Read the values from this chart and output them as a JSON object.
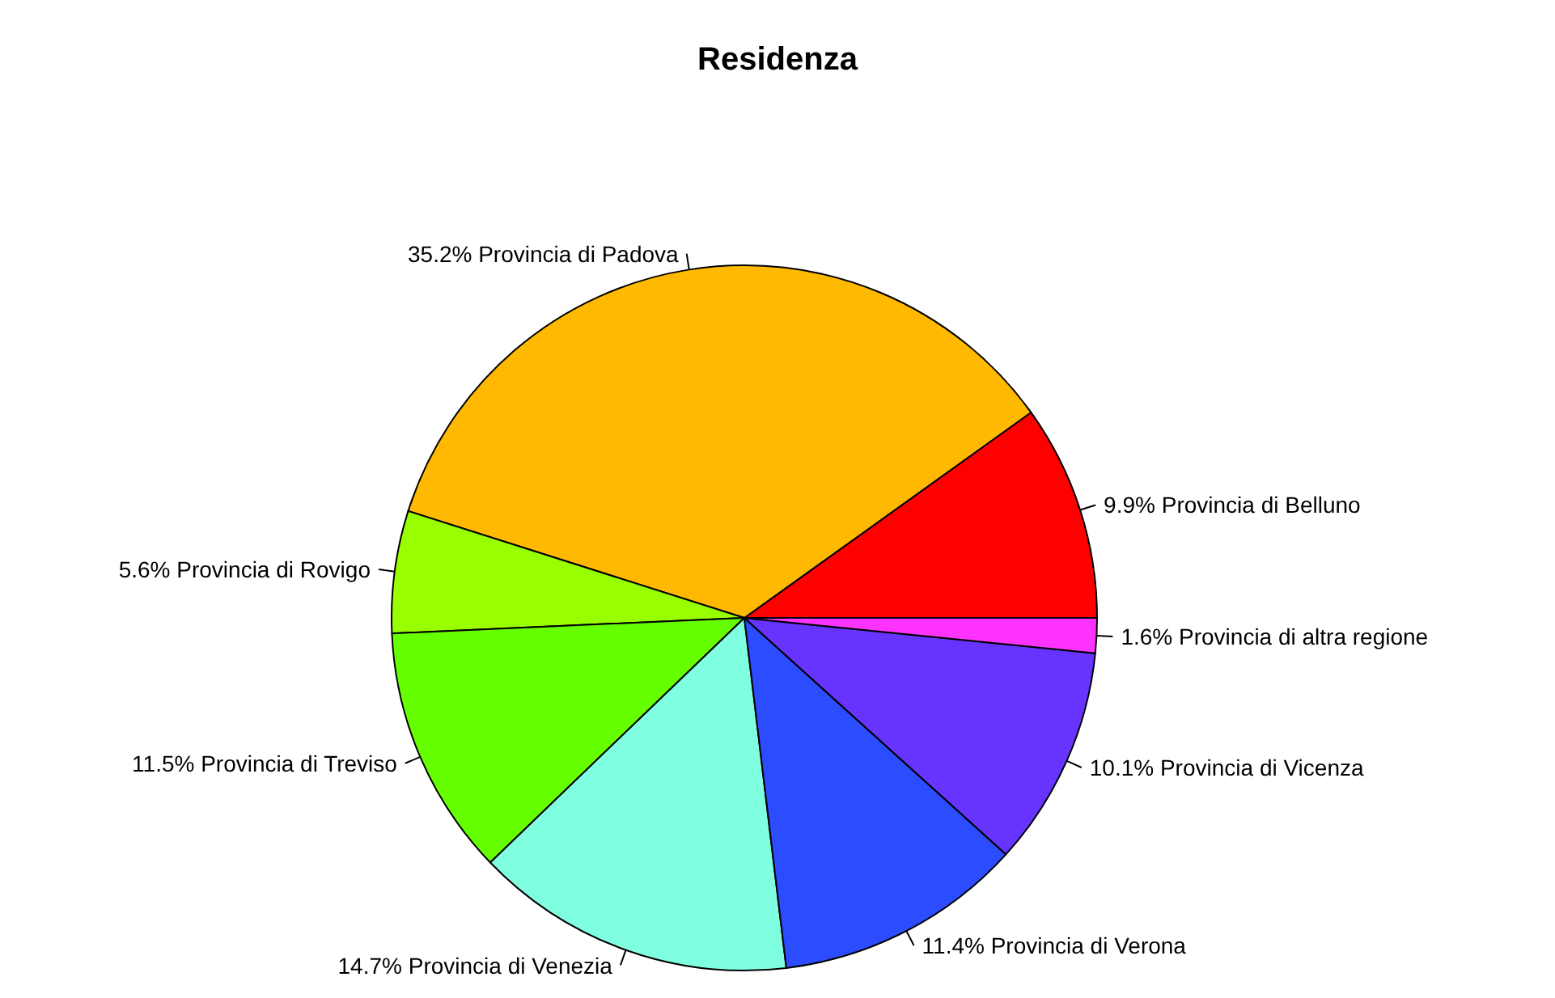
{
  "chart_data": {
    "type": "pie",
    "title": "Residenza",
    "categories": [
      "9.9% Provincia di Belluno",
      "35.2% Provincia di Padova",
      "5.6% Provincia di Rovigo",
      "11.5% Provincia di Treviso",
      "14.7% Provincia di Venezia",
      "11.4% Provincia di Verona",
      "10.1% Provincia di Vicenza",
      "1.6% Provincia di altra regione"
    ],
    "values": [
      9.9,
      35.2,
      5.6,
      11.5,
      14.7,
      11.4,
      10.1,
      1.6
    ],
    "colors": [
      "#ff0000",
      "#ffb900",
      "#99ff00",
      "#66ff00",
      "#7fffdf",
      "#2b4cff",
      "#6633ff",
      "#ff33ff"
    ],
    "legend": false
  }
}
